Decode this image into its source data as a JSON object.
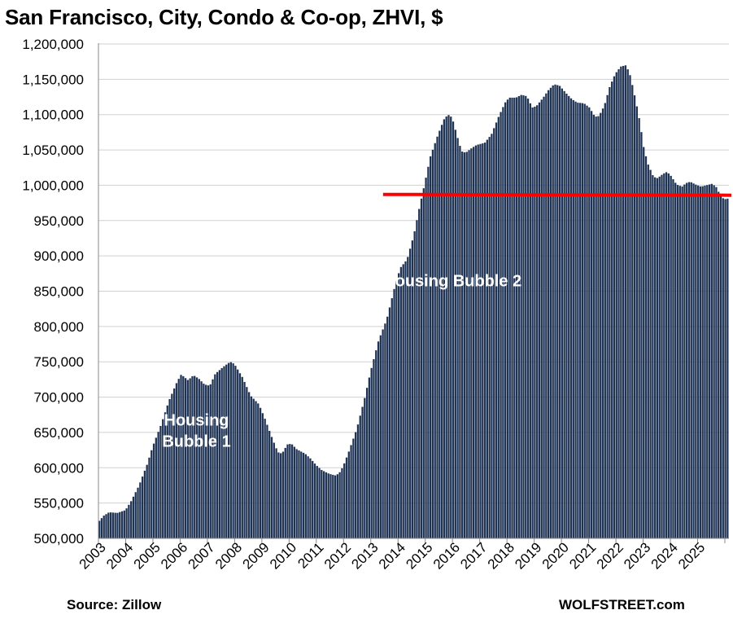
{
  "chart_data": {
    "type": "bar",
    "title": "San Francisco, City, Condo & Co-op, ZHVI, $",
    "xlabel": "",
    "ylabel": "",
    "ylim": [
      500000,
      1200000
    ],
    "y_ticks": [
      500000,
      550000,
      600000,
      650000,
      700000,
      750000,
      800000,
      850000,
      900000,
      950000,
      1000000,
      1050000,
      1100000,
      1150000,
      1200000
    ],
    "y_tick_labels": [
      "500,000",
      "550,000",
      "600,000",
      "650,000",
      "700,000",
      "750,000",
      "800,000",
      "850,000",
      "900,000",
      "950,000",
      "1,000,000",
      "1,050,000",
      "1,100,000",
      "1,150,000",
      "1,200,000"
    ],
    "x_tick_labels": [
      "2003",
      "2004",
      "2005",
      "2006",
      "2007",
      "2008",
      "2009",
      "2010",
      "2011",
      "2012",
      "2013",
      "2014",
      "2015",
      "2016",
      "2017",
      "2018",
      "2019",
      "2020",
      "2021",
      "2022",
      "2023",
      "2024",
      "2025"
    ],
    "grid": true,
    "bar_color": "#1f3354",
    "reference_line": {
      "value": 987000,
      "color": "#ff0000"
    },
    "annotations": [
      {
        "text_lines": [
          "Housing",
          "Bubble 1"
        ],
        "x": 2006.6,
        "y": 660000
      },
      {
        "text_lines": [
          "Housing Bubble 2"
        ],
        "x": 2016.0,
        "y": 857000
      }
    ],
    "series_anchors": [
      [
        2003.0,
        523000
      ],
      [
        2003.2,
        532000
      ],
      [
        2003.4,
        537000
      ],
      [
        2003.7,
        536000
      ],
      [
        2004.0,
        540000
      ],
      [
        2004.2,
        552000
      ],
      [
        2004.5,
        575000
      ],
      [
        2004.8,
        605000
      ],
      [
        2005.0,
        630000
      ],
      [
        2005.3,
        660000
      ],
      [
        2005.6,
        695000
      ],
      [
        2005.9,
        722000
      ],
      [
        2006.05,
        732000
      ],
      [
        2006.3,
        724000
      ],
      [
        2006.5,
        731000
      ],
      [
        2006.7,
        726000
      ],
      [
        2006.9,
        718000
      ],
      [
        2007.1,
        716000
      ],
      [
        2007.3,
        733000
      ],
      [
        2007.6,
        743000
      ],
      [
        2007.85,
        750000
      ],
      [
        2008.0,
        747000
      ],
      [
        2008.3,
        728000
      ],
      [
        2008.6,
        702000
      ],
      [
        2008.9,
        690000
      ],
      [
        2009.1,
        672000
      ],
      [
        2009.4,
        641000
      ],
      [
        2009.6,
        622000
      ],
      [
        2009.75,
        620000
      ],
      [
        2009.95,
        633000
      ],
      [
        2010.1,
        634000
      ],
      [
        2010.3,
        626000
      ],
      [
        2010.6,
        620000
      ],
      [
        2010.8,
        613000
      ],
      [
        2011.0,
        604000
      ],
      [
        2011.2,
        597000
      ],
      [
        2011.45,
        592000
      ],
      [
        2011.7,
        589000
      ],
      [
        2011.85,
        592000
      ],
      [
        2012.0,
        602000
      ],
      [
        2012.2,
        622000
      ],
      [
        2012.5,
        655000
      ],
      [
        2012.8,
        700000
      ],
      [
        2013.0,
        735000
      ],
      [
        2013.3,
        780000
      ],
      [
        2013.6,
        810000
      ],
      [
        2013.9,
        857000
      ],
      [
        2014.1,
        883000
      ],
      [
        2014.35,
        895000
      ],
      [
        2014.6,
        930000
      ],
      [
        2014.8,
        968000
      ],
      [
        2015.0,
        1003000
      ],
      [
        2015.2,
        1040000
      ],
      [
        2015.45,
        1068000
      ],
      [
        2015.7,
        1093000
      ],
      [
        2015.85,
        1100000
      ],
      [
        2016.0,
        1096000
      ],
      [
        2016.2,
        1068000
      ],
      [
        2016.35,
        1048000
      ],
      [
        2016.5,
        1046000
      ],
      [
        2016.7,
        1052000
      ],
      [
        2016.9,
        1057000
      ],
      [
        2017.2,
        1060000
      ],
      [
        2017.45,
        1072000
      ],
      [
        2017.7,
        1096000
      ],
      [
        2017.95,
        1117000
      ],
      [
        2018.1,
        1124000
      ],
      [
        2018.35,
        1124000
      ],
      [
        2018.55,
        1128000
      ],
      [
        2018.75,
        1126000
      ],
      [
        2018.95,
        1110000
      ],
      [
        2019.1,
        1112000
      ],
      [
        2019.35,
        1124000
      ],
      [
        2019.55,
        1135000
      ],
      [
        2019.75,
        1143000
      ],
      [
        2019.95,
        1141000
      ],
      [
        2020.2,
        1130000
      ],
      [
        2020.4,
        1122000
      ],
      [
        2020.6,
        1117000
      ],
      [
        2020.85,
        1116000
      ],
      [
        2021.05,
        1110000
      ],
      [
        2021.25,
        1097000
      ],
      [
        2021.4,
        1098000
      ],
      [
        2021.6,
        1113000
      ],
      [
        2021.8,
        1140000
      ],
      [
        2022.0,
        1158000
      ],
      [
        2022.2,
        1168000
      ],
      [
        2022.4,
        1170000
      ],
      [
        2022.55,
        1155000
      ],
      [
        2022.75,
        1120000
      ],
      [
        2022.9,
        1090000
      ],
      [
        2023.05,
        1052000
      ],
      [
        2023.2,
        1030000
      ],
      [
        2023.4,
        1012000
      ],
      [
        2023.55,
        1010000
      ],
      [
        2023.75,
        1016000
      ],
      [
        2023.9,
        1019000
      ],
      [
        2024.05,
        1013000
      ],
      [
        2024.25,
        1001000
      ],
      [
        2024.45,
        998000
      ],
      [
        2024.6,
        1003000
      ],
      [
        2024.75,
        1005000
      ],
      [
        2024.95,
        1001000
      ],
      [
        2025.15,
        998000
      ],
      [
        2025.35,
        1000000
      ],
      [
        2025.55,
        1002000
      ],
      [
        2025.7,
        998000
      ],
      [
        2025.85,
        986000
      ],
      [
        2026.0,
        980000
      ],
      [
        2026.1,
        981000
      ]
    ]
  },
  "footer": {
    "source": "Source: Zillow",
    "publisher": "WOLFSTREET.com"
  }
}
